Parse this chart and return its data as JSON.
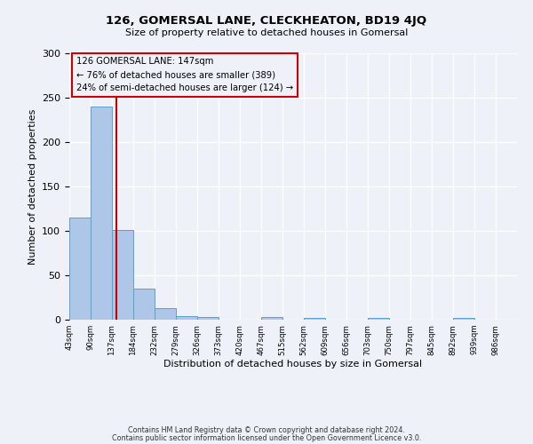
{
  "title": "126, GOMERSAL LANE, CLECKHEATON, BD19 4JQ",
  "subtitle": "Size of property relative to detached houses in Gomersal",
  "xlabel": "Distribution of detached houses by size in Gomersal",
  "ylabel": "Number of detached properties",
  "bar_values": [
    115,
    240,
    101,
    35,
    13,
    4,
    3,
    0,
    0,
    3,
    0,
    2,
    0,
    0,
    2,
    0,
    0,
    0,
    2,
    0
  ],
  "bin_labels": [
    "43sqm",
    "90sqm",
    "137sqm",
    "184sqm",
    "232sqm",
    "279sqm",
    "326sqm",
    "373sqm",
    "420sqm",
    "467sqm",
    "515sqm",
    "562sqm",
    "609sqm",
    "656sqm",
    "703sqm",
    "750sqm",
    "797sqm",
    "845sqm",
    "892sqm",
    "939sqm",
    "986sqm"
  ],
  "bin_edges": [
    43,
    90,
    137,
    184,
    232,
    279,
    326,
    373,
    420,
    467,
    515,
    562,
    609,
    656,
    703,
    750,
    797,
    845,
    892,
    939,
    986
  ],
  "bar_color": "#aec6e8",
  "bar_edge_color": "#5a9fd4",
  "vline_x": 147,
  "vline_color": "#cc0000",
  "ylim": [
    0,
    300
  ],
  "yticks": [
    0,
    50,
    100,
    150,
    200,
    250,
    300
  ],
  "annotation_title": "126 GOMERSAL LANE: 147sqm",
  "annotation_line1": "← 76% of detached houses are smaller (389)",
  "annotation_line2": "24% of semi-detached houses are larger (124) →",
  "annotation_box_color": "#cc0000",
  "footer_line1": "Contains HM Land Registry data © Crown copyright and database right 2024.",
  "footer_line2": "Contains public sector information licensed under the Open Government Licence v3.0.",
  "background_color": "#eef2f8"
}
